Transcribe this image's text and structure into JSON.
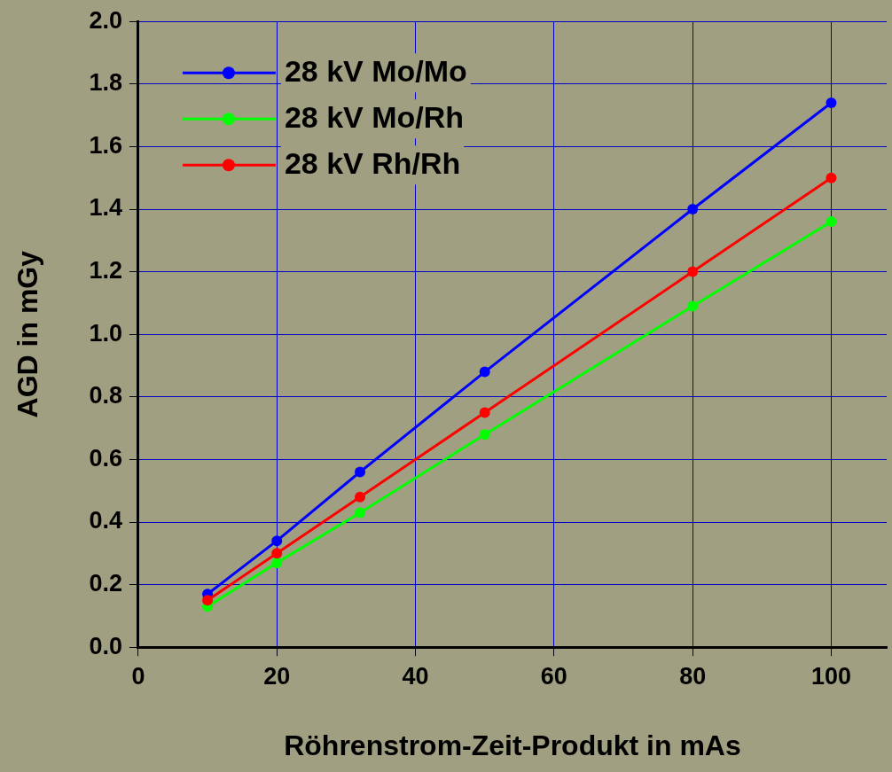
{
  "chart_data": {
    "type": "line",
    "xlabel": "Röhrenstrom-Zeit-Produkt in mAs",
    "ylabel": "AGD in mGy",
    "x": [
      10,
      20,
      32,
      50,
      80,
      100
    ],
    "series": [
      {
        "name": "28 kV Mo/Mo",
        "color": "#0000ff",
        "values": [
          0.17,
          0.34,
          0.56,
          0.88,
          1.4,
          1.74
        ]
      },
      {
        "name": "28 kV Mo/Rh",
        "color": "#00ff00",
        "values": [
          0.13,
          0.27,
          0.43,
          0.68,
          1.09,
          1.36
        ]
      },
      {
        "name": "28 kV Rh/Rh",
        "color": "#ff0000",
        "values": [
          0.15,
          0.3,
          0.48,
          0.75,
          1.2,
          1.5
        ]
      }
    ],
    "xlim": [
      0,
      108
    ],
    "xticks": [
      0,
      20,
      40,
      60,
      80,
      100
    ],
    "ylim": [
      0,
      2.0
    ],
    "yticks": [
      {
        "value": 0,
        "label": "0.0"
      },
      {
        "value": 0.2,
        "label": "0.2"
      },
      {
        "value": 0.4,
        "label": "0.4"
      },
      {
        "value": 0.6,
        "label": "0.6"
      },
      {
        "value": 0.8,
        "label": "0.8"
      },
      {
        "value": 1.0,
        "label": "1.0"
      },
      {
        "value": 1.2,
        "label": "1.2"
      },
      {
        "value": 1.4,
        "label": "1.4"
      },
      {
        "value": 1.6,
        "label": "1.6"
      },
      {
        "value": 1.8,
        "label": "1.8"
      },
      {
        "value": 2.0,
        "label": "2.0"
      }
    ],
    "grid": true,
    "legend": "top left",
    "marker": "circle",
    "line_style": "solid"
  }
}
